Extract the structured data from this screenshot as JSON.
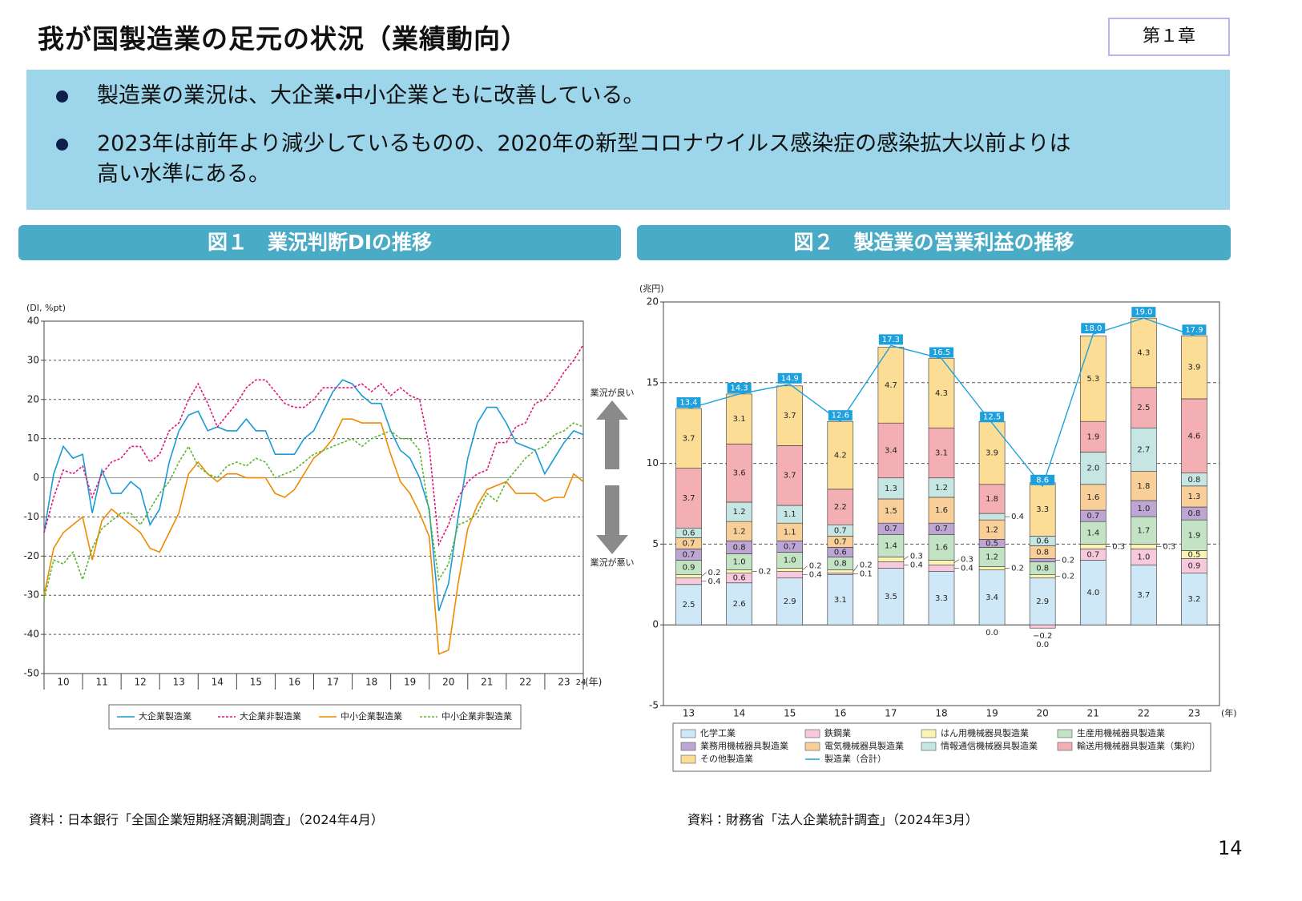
{
  "header": {
    "title": "我が国製造業の足元の状況（業績動向）",
    "chapter": "第１章"
  },
  "bullets": [
    [
      "製造業の業況は、大企業・中小企業ともに改善している。"
    ],
    [
      "2023年は前年より減少しているものの、2020年の新型コロナウイルス感染症の感染拡大以前よりは",
      "高い水準にある。"
    ]
  ],
  "chart_data": [
    {
      "type": "line",
      "title": "図１　業況判断DIの推移",
      "y_label": "(DI, %pt)",
      "x_label": "(年)",
      "annotations": [
        "業況が良い",
        "業況が悪い"
      ],
      "x": [
        10,
        10.25,
        10.5,
        10.75,
        11,
        11.25,
        11.5,
        11.75,
        12,
        12.25,
        12.5,
        12.75,
        13,
        13.25,
        13.5,
        13.75,
        14,
        14.25,
        14.5,
        14.75,
        15,
        15.25,
        15.5,
        15.75,
        16,
        16.25,
        16.5,
        16.75,
        17,
        17.25,
        17.5,
        17.75,
        18,
        18.25,
        18.5,
        18.75,
        19,
        19.25,
        19.5,
        19.75,
        20,
        20.25,
        20.5,
        20.75,
        21,
        21.25,
        21.5,
        21.75,
        22,
        22.25,
        22.5,
        22.75,
        23,
        23.25,
        23.5,
        23.75,
        24
      ],
      "xlim": [
        10,
        24
      ],
      "xticks": [
        10,
        11,
        12,
        13,
        14,
        15,
        16,
        17,
        18,
        19,
        20,
        21,
        22,
        23,
        24
      ],
      "ylim": [
        -50,
        40
      ],
      "yticks": [
        -50,
        -40,
        -30,
        -20,
        -10,
        0,
        10,
        20,
        30,
        40
      ],
      "grid": true,
      "series": [
        {
          "name": "大企業製造業",
          "color": "#1a9ad6",
          "dash": "solid",
          "values": [
            -14,
            1,
            8,
            5,
            6,
            -9,
            2,
            -4,
            -4,
            -1,
            -3,
            -12,
            -8,
            4,
            12,
            16,
            17,
            12,
            13,
            12,
            12,
            15,
            12,
            12,
            6,
            6,
            6,
            10,
            12,
            17,
            22,
            25,
            24,
            21,
            19,
            19,
            12,
            7,
            5,
            0,
            -8,
            -34,
            -27,
            -10,
            5,
            14,
            18,
            18,
            14,
            9,
            8,
            7,
            1,
            5,
            9,
            12,
            11
          ]
        },
        {
          "name": "大企業非製造業",
          "color": "#e0177a",
          "dash": "dotted",
          "values": [
            -14,
            -5,
            2,
            1,
            3,
            -5,
            1,
            4,
            5,
            8,
            8,
            4,
            6,
            12,
            14,
            20,
            24,
            19,
            13,
            16,
            19,
            23,
            25,
            25,
            22,
            19,
            18,
            18,
            20,
            23,
            23,
            23,
            23,
            24,
            22,
            24,
            21,
            23,
            21,
            20,
            8,
            -17,
            -12,
            -5,
            -1,
            1,
            2,
            9,
            9,
            13,
            14,
            19,
            20,
            23,
            27,
            30,
            34
          ]
        },
        {
          "name": "中小企業製造業",
          "color": "#f08a00",
          "dash": "solid",
          "values": [
            -30,
            -18,
            -14,
            -12,
            -10,
            -21,
            -11,
            -8,
            -10,
            -12,
            -14,
            -18,
            -19,
            -14,
            -9,
            1,
            4,
            1,
            -1,
            1,
            1,
            0,
            0,
            0,
            -4,
            -5,
            -3,
            1,
            5,
            7,
            10,
            15,
            15,
            14,
            14,
            14,
            6,
            -1,
            -4,
            -9,
            -15,
            -45,
            -44,
            -27,
            -13,
            -7,
            -3,
            -2,
            -1,
            -4,
            -4,
            -4,
            -6,
            -5,
            -5,
            1,
            -1
          ]
        },
        {
          "name": "中小企業非製造業",
          "color": "#5cb531",
          "dash": "dotted",
          "values": [
            -31,
            -21,
            -22,
            -19,
            -26,
            -18,
            -13,
            -11,
            -9,
            -9,
            -12,
            -8,
            -4,
            -1,
            4,
            8,
            3,
            1,
            0,
            3,
            4,
            3,
            5,
            4,
            0,
            1,
            2,
            4,
            6,
            7,
            8,
            9,
            10,
            8,
            10,
            11,
            12,
            10,
            10,
            7,
            -9,
            -26,
            -22,
            -12,
            -11,
            -9,
            -4,
            -6,
            -1,
            2,
            5,
            7,
            8,
            11,
            12,
            14,
            13
          ]
        }
      ],
      "source": "資料：日本銀行「全国企業短期経済観測調査」（2024年4月）"
    },
    {
      "type": "bar",
      "stacked": true,
      "title": "図２　製造業の営業利益の推移",
      "y_label": "(兆円)",
      "x_label": "(年)",
      "categories": [
        "13",
        "14",
        "15",
        "16",
        "17",
        "18",
        "19",
        "20",
        "21",
        "22",
        "23"
      ],
      "ylim": [
        -5,
        20
      ],
      "yticks": [
        -5,
        0,
        5,
        10,
        15,
        20
      ],
      "grid": true,
      "series": [
        {
          "name": "化学工業",
          "color": "#cfe8f7",
          "values": [
            2.5,
            2.6,
            2.9,
            3.1,
            3.5,
            3.3,
            3.4,
            2.9,
            4.0,
            3.7,
            3.2
          ],
          "value_labels": [
            "2.5",
            "2.6",
            "2.9",
            "3.1",
            "3.5",
            "3.3",
            "3.4",
            "2.9",
            "4.0",
            "3.7",
            "3.2"
          ]
        },
        {
          "name": "鉄鋼業",
          "color": "#f6c9dc",
          "values": [
            0.4,
            0.6,
            0.4,
            0.1,
            0.4,
            0.4,
            0.0,
            -0.2,
            0.7,
            1.0,
            0.9
          ],
          "value_labels": [
            "0.4",
            "0.6",
            "0.4",
            "0.1",
            "0.4",
            "0.4",
            "0.0",
            "−0.2",
            "0.7",
            "1.0",
            "0.9"
          ]
        },
        {
          "name": "はん用機械器具製造業",
          "color": "#fbf3b6",
          "values": [
            0.2,
            0.2,
            0.2,
            0.2,
            0.3,
            0.3,
            0.2,
            0.2,
            0.3,
            0.3,
            0.5
          ],
          "value_labels": [
            "0.2",
            "0.2",
            "0.2",
            "0.2",
            "0.3",
            "0.3",
            "0.2",
            "0.2",
            "0.3",
            "0.3",
            "0.5"
          ]
        },
        {
          "name": "生産用機械器具製造業",
          "color": "#c4e3c4",
          "values": [
            0.9,
            1.0,
            1.0,
            0.8,
            1.4,
            1.6,
            1.2,
            0.8,
            1.4,
            1.7,
            1.9
          ],
          "value_labels": [
            "0.9",
            "1.0",
            "1.0",
            "0.8",
            "1.4",
            "1.6",
            "1.2",
            "0.8",
            "1.4",
            "1.7",
            "1.9"
          ]
        },
        {
          "name": "業務用機械器具製造業",
          "color": "#bda6d3",
          "values": [
            0.7,
            0.8,
            0.7,
            0.6,
            0.7,
            0.7,
            0.5,
            0.2,
            0.7,
            1.0,
            0.8
          ],
          "value_labels": [
            "0.7",
            "0.8",
            "0.7",
            "0.6",
            "0.7",
            "0.7",
            "0.5",
            "0.2",
            "0.7",
            "1.0",
            "0.8"
          ]
        },
        {
          "name": "電気機械器具製造業",
          "color": "#f8cf99",
          "values": [
            0.7,
            1.2,
            1.1,
            0.7,
            1.5,
            1.6,
            1.2,
            0.8,
            1.6,
            1.8,
            1.3
          ],
          "value_labels": [
            "0.7",
            "1.2",
            "1.1",
            "0.7",
            "1.5",
            "1.6",
            "1.2",
            "0.8",
            "1.6",
            "1.8",
            "1.3"
          ]
        },
        {
          "name": "情報通信機械器具製造業",
          "color": "#c5e6e3",
          "values": [
            0.6,
            1.2,
            1.1,
            0.7,
            1.3,
            1.2,
            0.4,
            0.6,
            2.0,
            2.7,
            0.8
          ],
          "value_labels": [
            "0.6",
            "1.2",
            "1.1",
            "0.7",
            "1.3",
            "1.2",
            "0.4",
            "0.6",
            "2.0",
            "2.7",
            "0.8"
          ]
        },
        {
          "name": "輸送用機械器具製造業（集約）",
          "color": "#f4afb4",
          "values": [
            3.7,
            3.6,
            3.7,
            2.2,
            3.4,
            3.1,
            1.8,
            0.0,
            1.9,
            2.5,
            4.6
          ],
          "value_labels": [
            "3.7",
            "3.6",
            "3.7",
            "2.2",
            "3.4",
            "3.1",
            "1.8",
            "0.0",
            "1.9",
            "2.5",
            "4.6"
          ]
        },
        {
          "name": "その他製造業",
          "color": "#fbdd95",
          "values": [
            3.7,
            3.1,
            3.7,
            4.2,
            4.7,
            4.3,
            3.9,
            3.3,
            5.3,
            4.3,
            3.9
          ],
          "value_labels": [
            "3.7",
            "3.1",
            "3.7",
            "4.2",
            "4.7",
            "4.3",
            "3.9",
            "3.3",
            "5.3",
            "4.3",
            "3.9"
          ]
        },
        {
          "name": "製造業（合計）",
          "type": "line",
          "color": "#1ea0dc",
          "values": [
            13.4,
            14.3,
            14.9,
            12.6,
            17.3,
            16.5,
            12.5,
            8.6,
            18.0,
            19.0,
            17.9
          ],
          "value_labels": [
            "13.4",
            "14.3",
            "14.9",
            "12.6",
            "17.3",
            "16.5",
            "12.5",
            "8.6",
            "18.0",
            "19.0",
            "17.9"
          ]
        }
      ],
      "source": "資料：財務省「法人企業統計調査」（2024年3月）"
    }
  ],
  "page": 14
}
